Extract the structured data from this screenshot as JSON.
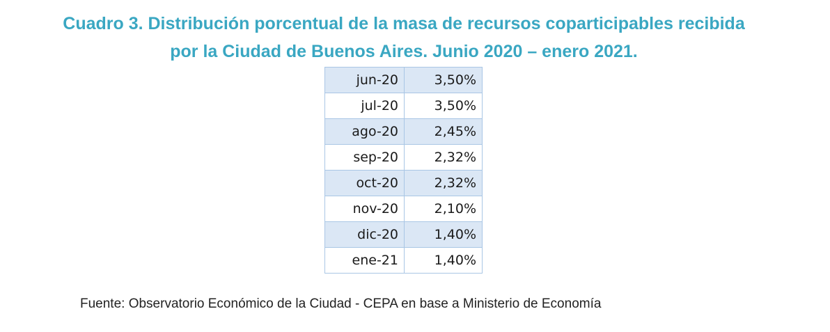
{
  "title": {
    "line1": "Cuadro 3. Distribución porcentual de la masa de recursos coparticipables recibida",
    "line2": "por la Ciudad de Buenos Aires. Junio 2020 – enero 2021."
  },
  "table": {
    "rows": [
      {
        "month": "jun-20",
        "value": "3,50%"
      },
      {
        "month": "jul-20",
        "value": "3,50%"
      },
      {
        "month": "ago-20",
        "value": "2,45%"
      },
      {
        "month": "sep-20",
        "value": "2,32%"
      },
      {
        "month": "oct-20",
        "value": "2,32%"
      },
      {
        "month": "nov-20",
        "value": "2,10%"
      },
      {
        "month": "dic-20",
        "value": "1,40%"
      },
      {
        "month": "ene-21",
        "value": "1,40%"
      }
    ]
  },
  "source": "Fuente: Observatorio Económico de la Ciudad - CEPA en base a Ministerio de Economía",
  "colors": {
    "title": "#3aa7c2",
    "row_shade": "#dbe7f5",
    "border": "#a9c6e5"
  }
}
